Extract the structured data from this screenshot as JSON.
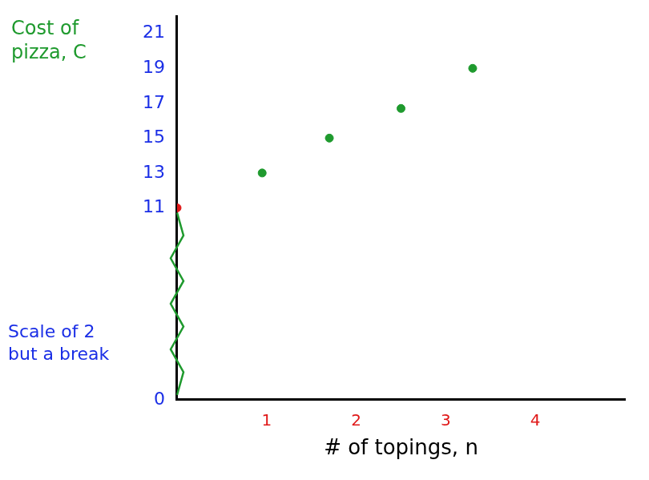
{
  "chart_data": {
    "type": "scatter",
    "x_label": "# of topings, n",
    "y_label": "Cost of pizza, C",
    "annotations": [
      "Scale of 2 but a break"
    ],
    "x": [
      0,
      0.95,
      1.7,
      2.5,
      3.3
    ],
    "values": [
      11,
      13,
      15,
      16.7,
      19
    ],
    "colors": [
      "#e01818",
      "#1f9a2e",
      "#1f9a2e",
      "#1f9a2e",
      "#1f9a2e"
    ],
    "xlim": [
      0,
      5
    ],
    "xticks": [
      1,
      2,
      3,
      4
    ],
    "ylim": [
      0,
      22
    ],
    "yticks": [
      0,
      11,
      13,
      15,
      17,
      19,
      21
    ],
    "grid": false
  }
}
